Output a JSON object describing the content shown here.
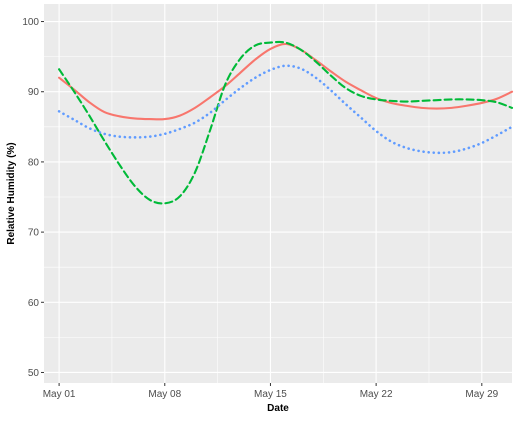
{
  "chart_data": {
    "type": "line",
    "title": "",
    "xlabel": "Date",
    "ylabel": "Relative Humidity (%)",
    "ylim": [
      48.5,
      102.5
    ],
    "xlim": [
      "2023-04-30",
      "2023-05-31"
    ],
    "x_ticks": [
      {
        "date": "2023-05-01",
        "label": "May 01"
      },
      {
        "date": "2023-05-08",
        "label": "May 08"
      },
      {
        "date": "2023-05-15",
        "label": "May 15"
      },
      {
        "date": "2023-05-22",
        "label": "May 22"
      },
      {
        "date": "2023-05-29",
        "label": "May 29"
      }
    ],
    "y_ticks": [
      50,
      60,
      70,
      80,
      90,
      100
    ],
    "grid": true,
    "legend": "none",
    "panel_background": "#ebebeb",
    "series": [
      {
        "color": "#f8766d",
        "linestyle": "solid",
        "x": [
          "2023-05-01",
          "2023-05-02",
          "2023-05-03",
          "2023-05-04",
          "2023-05-05",
          "2023-05-06",
          "2023-05-07",
          "2023-05-08",
          "2023-05-09",
          "2023-05-10",
          "2023-05-11",
          "2023-05-12",
          "2023-05-13",
          "2023-05-14",
          "2023-05-15",
          "2023-05-16",
          "2023-05-17",
          "2023-05-18",
          "2023-05-19",
          "2023-05-20",
          "2023-05-21",
          "2023-05-22",
          "2023-05-23",
          "2023-05-24",
          "2023-05-25",
          "2023-05-26",
          "2023-05-27",
          "2023-05-28",
          "2023-05-29",
          "2023-05-30",
          "2023-05-31"
        ],
        "y": [
          92.0,
          90.3,
          88.5,
          87.1,
          86.5,
          86.2,
          86.1,
          86.1,
          86.6,
          87.7,
          89.2,
          90.8,
          92.7,
          94.6,
          96.1,
          96.8,
          96.0,
          94.5,
          92.9,
          91.4,
          90.2,
          89.1,
          88.4,
          88.0,
          87.7,
          87.6,
          87.7,
          88.0,
          88.4,
          89.0,
          90.0
        ]
      },
      {
        "color": "#00ba38",
        "linestyle": "dashed",
        "x": [
          "2023-05-01",
          "2023-05-02",
          "2023-05-03",
          "2023-05-04",
          "2023-05-05",
          "2023-05-06",
          "2023-05-07",
          "2023-05-08",
          "2023-05-09",
          "2023-05-10",
          "2023-05-11",
          "2023-05-12",
          "2023-05-13",
          "2023-05-14",
          "2023-05-15",
          "2023-05-16",
          "2023-05-17",
          "2023-05-18",
          "2023-05-19",
          "2023-05-20",
          "2023-05-21",
          "2023-05-22",
          "2023-05-23",
          "2023-05-24",
          "2023-05-25",
          "2023-05-26",
          "2023-05-27",
          "2023-05-28",
          "2023-05-29",
          "2023-05-30",
          "2023-05-31"
        ],
        "y": [
          93.2,
          90.0,
          86.6,
          83.0,
          79.6,
          76.6,
          74.6,
          74.1,
          75.1,
          78.5,
          84.5,
          91.0,
          94.7,
          96.6,
          97.0,
          97.0,
          96.0,
          94.3,
          92.3,
          90.5,
          89.4,
          88.9,
          88.7,
          88.6,
          88.7,
          88.8,
          88.9,
          88.9,
          88.8,
          88.5,
          87.7
        ]
      },
      {
        "color": "#619cff",
        "linestyle": "dotted",
        "x": [
          "2023-05-01",
          "2023-05-02",
          "2023-05-03",
          "2023-05-04",
          "2023-05-05",
          "2023-05-06",
          "2023-05-07",
          "2023-05-08",
          "2023-05-09",
          "2023-05-10",
          "2023-05-11",
          "2023-05-12",
          "2023-05-13",
          "2023-05-14",
          "2023-05-15",
          "2023-05-16",
          "2023-05-17",
          "2023-05-18",
          "2023-05-19",
          "2023-05-20",
          "2023-05-21",
          "2023-05-22",
          "2023-05-23",
          "2023-05-24",
          "2023-05-25",
          "2023-05-26",
          "2023-05-27",
          "2023-05-28",
          "2023-05-29",
          "2023-05-30",
          "2023-05-31"
        ],
        "y": [
          87.2,
          86.0,
          84.8,
          84.0,
          83.6,
          83.5,
          83.6,
          84.0,
          84.7,
          85.6,
          87.0,
          88.8,
          90.5,
          92.0,
          93.1,
          93.7,
          93.3,
          92.0,
          90.2,
          88.2,
          86.3,
          84.4,
          82.9,
          82.0,
          81.5,
          81.3,
          81.4,
          81.9,
          82.7,
          83.8,
          85.0
        ]
      }
    ]
  }
}
